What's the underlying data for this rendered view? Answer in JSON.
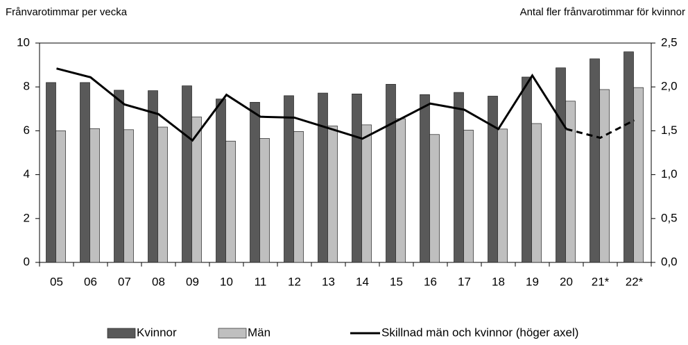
{
  "chart_data": {
    "type": "bar-line",
    "y_label": "Frånvarotimmar per vecka",
    "y2_label": "Antal fler frånvarotimmar för kvinnor",
    "categories": [
      "05",
      "06",
      "07",
      "08",
      "09",
      "10",
      "11",
      "12",
      "13",
      "14",
      "15",
      "16",
      "17",
      "18",
      "19",
      "20",
      "21*",
      "22*"
    ],
    "series": [
      {
        "name": "Kvinnor",
        "type": "bar",
        "color": "#595959",
        "values": [
          8.2,
          8.2,
          7.85,
          7.83,
          8.05,
          7.45,
          7.3,
          7.6,
          7.72,
          7.68,
          8.12,
          7.65,
          7.75,
          7.58,
          8.45,
          8.87,
          9.28,
          9.6
        ]
      },
      {
        "name": "Män",
        "type": "bar",
        "color": "#bfbfbf",
        "values": [
          6.0,
          6.1,
          6.05,
          6.17,
          6.63,
          5.53,
          5.65,
          5.97,
          6.22,
          6.27,
          6.55,
          5.83,
          6.03,
          6.08,
          6.33,
          7.35,
          7.88,
          7.97
        ]
      },
      {
        "name": "Skillnad män och kvinnor (höger axel)",
        "type": "line",
        "axis": "y2",
        "color": "#000000",
        "dash_start_index": 15,
        "values": [
          2.21,
          2.11,
          1.8,
          1.69,
          1.39,
          1.91,
          1.66,
          1.65,
          1.53,
          1.41,
          1.61,
          1.81,
          1.74,
          1.52,
          2.13,
          1.52,
          1.42,
          1.62
        ]
      }
    ],
    "ylim": [
      0,
      10
    ],
    "yticks": [
      0,
      2,
      4,
      6,
      8,
      10
    ],
    "y2lim": [
      0,
      2.5
    ],
    "y2ticks": [
      {
        "value": 0,
        "label": "0,0"
      },
      {
        "value": 0.5,
        "label": "0,5"
      },
      {
        "value": 1,
        "label": "1,0"
      },
      {
        "value": 1.5,
        "label": "1,5"
      },
      {
        "value": 2,
        "label": "2,0"
      },
      {
        "value": 2.5,
        "label": "2,5"
      }
    ],
    "grid": false,
    "legend": "bottom"
  }
}
